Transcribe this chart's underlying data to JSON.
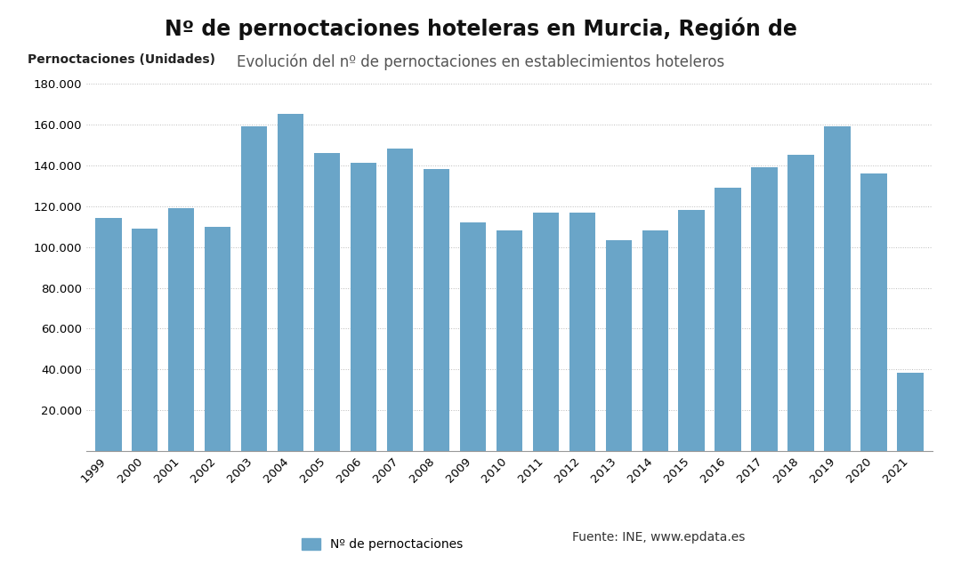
{
  "title": "Nº de pernoctaciones hoteleras en Murcia, Región de",
  "subtitle": "Evolución del nº de pernoctaciones en establecimientos hoteleros",
  "ylabel": "Pernoctaciones (Unidades)",
  "years": [
    "1999",
    "2000",
    "2001",
    "2002",
    "2003",
    "2004",
    "2005",
    "2006",
    "2007",
    "2008",
    "2009",
    "2010",
    "2011",
    "2012",
    "2013",
    "2014",
    "2015",
    "2016",
    "2017",
    "2018",
    "2019",
    "2020",
    "2021"
  ],
  "values": [
    114000,
    109000,
    119000,
    110000,
    159000,
    165000,
    146000,
    141000,
    148000,
    138000,
    112000,
    108000,
    117000,
    117000,
    103500,
    108000,
    118000,
    129000,
    139000,
    145000,
    159000,
    136000,
    38500
  ],
  "bar_color": "#6aa5c8",
  "background_color": "#ffffff",
  "grid_color": "#bbbbbb",
  "ylim_min": 0,
  "ylim_max": 185000,
  "yaxis_min": 20000,
  "yticks": [
    20000,
    40000,
    60000,
    80000,
    100000,
    120000,
    140000,
    160000,
    180000
  ],
  "legend_label": "Nº de pernoctaciones",
  "source_text": "Fuente: INE, www.epdata.es",
  "title_fontsize": 17,
  "subtitle_fontsize": 12,
  "ylabel_fontsize": 10,
  "tick_fontsize": 9.5,
  "legend_fontsize": 10
}
